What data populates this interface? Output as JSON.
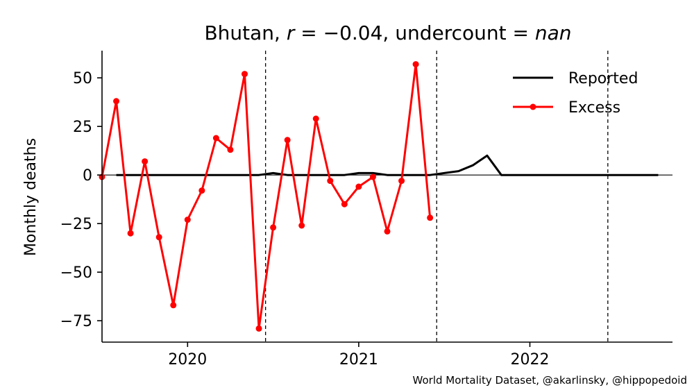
{
  "chart_data": {
    "type": "line",
    "title": "Bhutan, r = −0.04, undercount = nan",
    "title_parts": {
      "country": "Bhutan, ",
      "r_symbol": "r",
      "r_eq": " = −0.04, undercount = ",
      "nan": "nan"
    },
    "ylabel": "Monthly deaths",
    "xlabel": "",
    "xlim": [
      "2019-07",
      "2022-11"
    ],
    "ylim": [
      -86,
      64
    ],
    "yticks": [
      50,
      25,
      0,
      -25,
      -50,
      -75
    ],
    "ytick_labels": [
      "50",
      "25",
      "0",
      "−25",
      "−50",
      "−75"
    ],
    "xticks": [
      {
        "label": "2020",
        "date": "2020-01"
      },
      {
        "label": "2021",
        "date": "2021-01"
      },
      {
        "label": "2022",
        "date": "2022-01"
      }
    ],
    "vlines": [
      "2020-06-15",
      "2021-06-15",
      "2022-06-15"
    ],
    "legend_position": "top-right",
    "grid": false,
    "series": [
      {
        "name": "Reported",
        "color": "#000000",
        "marker": false,
        "x": [
          "2019-08",
          "2019-09",
          "2019-10",
          "2019-11",
          "2019-12",
          "2020-01",
          "2020-02",
          "2020-03",
          "2020-04",
          "2020-05",
          "2020-06",
          "2020-07",
          "2020-08",
          "2020-09",
          "2020-10",
          "2020-11",
          "2020-12",
          "2021-01",
          "2021-02",
          "2021-03",
          "2021-04",
          "2021-05",
          "2021-06",
          "2021-07",
          "2021-08",
          "2021-09",
          "2021-10",
          "2021-11",
          "2021-12",
          "2022-01",
          "2022-02",
          "2022-03",
          "2022-04",
          "2022-05",
          "2022-06",
          "2022-07",
          "2022-08",
          "2022-09",
          "2022-10"
        ],
        "values": [
          0,
          0,
          0,
          0,
          0,
          0,
          0,
          0,
          0,
          0,
          0,
          1,
          0,
          0,
          0,
          0,
          0,
          1,
          1,
          0,
          0,
          0,
          0,
          1,
          2,
          5,
          10,
          0,
          0,
          0,
          0,
          0,
          0,
          0,
          0,
          0,
          0,
          0,
          0
        ]
      },
      {
        "name": "Excess",
        "color": "#ff0000",
        "marker": true,
        "x": [
          "2019-07",
          "2019-08",
          "2019-09",
          "2019-10",
          "2019-11",
          "2019-12",
          "2020-01",
          "2020-02",
          "2020-03",
          "2020-04",
          "2020-05",
          "2020-06",
          "2020-07",
          "2020-08",
          "2020-09",
          "2020-10",
          "2020-11",
          "2020-12",
          "2021-01",
          "2021-02",
          "2021-03",
          "2021-04",
          "2021-05",
          "2021-06"
        ],
        "values": [
          -1,
          38,
          -30,
          7,
          -32,
          -67,
          -23,
          -8,
          19,
          13,
          52,
          -79,
          -27,
          18,
          -26,
          29,
          -3,
          -15,
          -6,
          -1,
          -29,
          -3,
          57,
          -22
        ]
      }
    ]
  },
  "footer": "World Mortality Dataset, @akarlinsky, @hippopedoid"
}
